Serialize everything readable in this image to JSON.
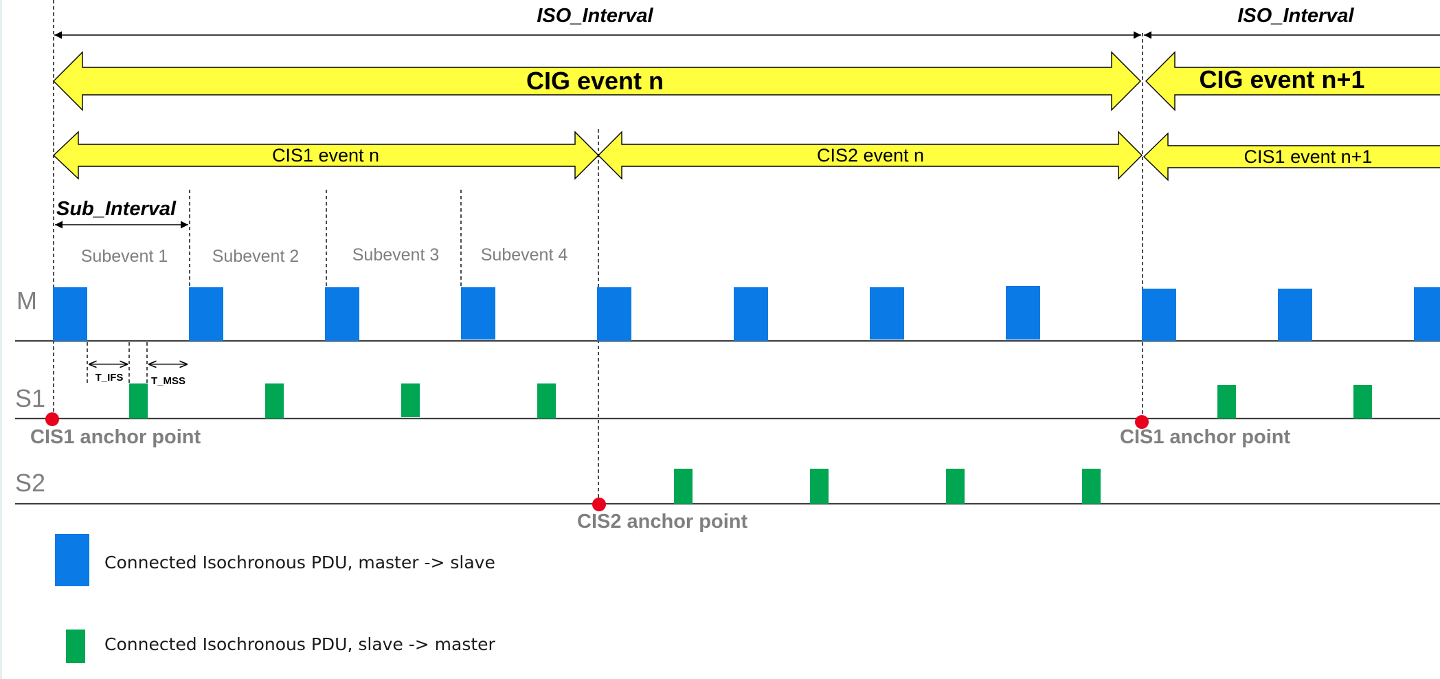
{
  "colors": {
    "master_pdu": "#0a7ae6",
    "slave_pdu": "#00a651",
    "event_arrow_fill": "#ffff3f",
    "anchor": "#e8001c",
    "axis_line": "#404040",
    "gray_text": "#7f7f7f"
  },
  "iso_interval_labels": [
    "ISO_Interval",
    "ISO_Interval"
  ],
  "cig_events": [
    "CIG event n",
    "CIG event n+1"
  ],
  "cis_events": [
    "CIS1 event n",
    "CIS2 event n",
    "CIS1 event n+1"
  ],
  "sub_interval_label": "Sub_Interval",
  "subevents": [
    "Subevent 1",
    "Subevent 2",
    "Subevent 3",
    "Subevent 4"
  ],
  "timing_labels": {
    "t_ifs": "T_IFS",
    "t_mss": "T_MSS"
  },
  "rows": {
    "master": "M",
    "slave1": "S1",
    "slave2": "S2"
  },
  "anchor_points": [
    "CIS1 anchor point",
    "CIS1 anchor point",
    "CIS2 anchor point"
  ],
  "legend": {
    "master_to_slave": "Connected Isochronous PDU, master -> slave",
    "slave_to_master": "Connected Isochronous PDU, slave -> master"
  }
}
